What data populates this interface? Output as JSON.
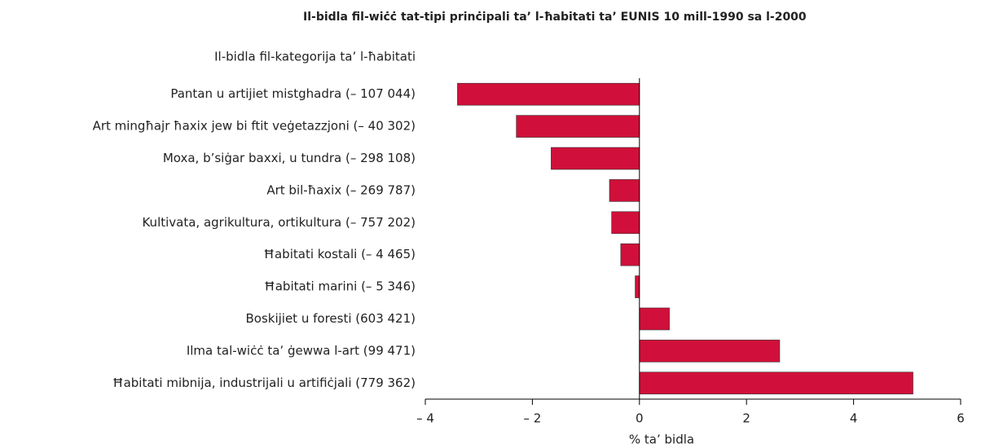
{
  "chart_data": {
    "type": "hbar",
    "title": "Il-bidla fil-wiċċ tat-tipi prinċipali ta’ l-ħabitati ta’ EUNIS 10 mill-1990 sa l-2000",
    "category_axis_label": "Il-bidla fil-kategorija ta’ l-ħabitati",
    "x_axis_label": "% ta’ bidla",
    "categories": [
      "Pantan u artijiet mistghadra  (– 107 044)",
      "Art mingħajr ħaxix jew bi ftit veġetazzjoni (– 40 302)",
      "Moxa, b’siġar baxxi, u tundra (– 298 108)",
      "Art bil-ħaxix (– 269 787)",
      "Kultivata, agrikultura, ortikultura (– 757 202)",
      "Ħabitati kostali (– 4 465)",
      "Ħabitati marini (– 5 346)",
      "Boskijiet u foresti (603 421)",
      "Ilma tal-wiċċ ta’ ġewwa l-art (99 471)",
      "Ħabitati mibnija, industrijali u artifiċjali (779 362)"
    ],
    "values": [
      -3.4,
      -2.3,
      -1.65,
      -0.56,
      -0.52,
      -0.35,
      -0.08,
      0.56,
      2.62,
      5.11
    ],
    "color": "#d0103a",
    "xlim": [
      -4,
      6
    ],
    "xticks": [
      {
        "value": -4,
        "label": "– 4"
      },
      {
        "value": -2,
        "label": "– 2"
      },
      0,
      2,
      4,
      6
    ]
  }
}
